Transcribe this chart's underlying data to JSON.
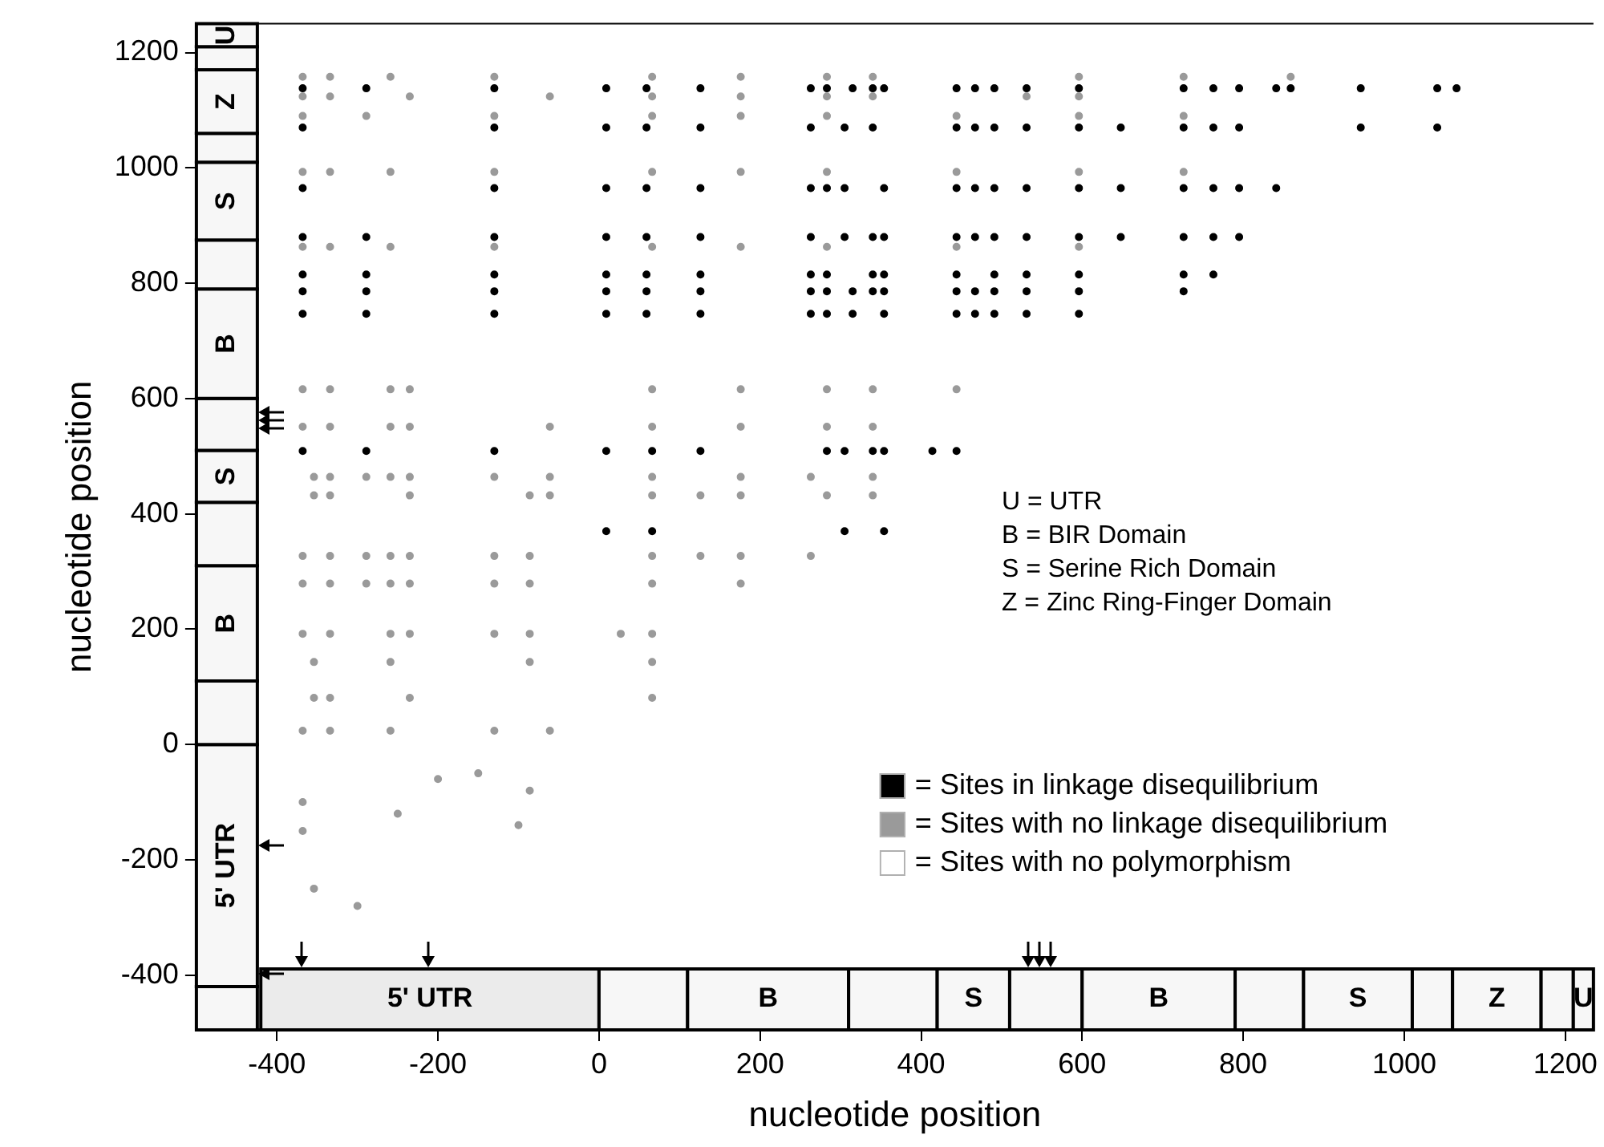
{
  "chart_data": {
    "type": "scatter",
    "xlabel": "nucleotide position",
    "ylabel": "nucleotide position",
    "xlim": [
      -500,
      1235
    ],
    "ylim": [
      -495,
      1250
    ],
    "xticks": [
      -400,
      -200,
      0,
      200,
      400,
      600,
      800,
      1000,
      1200
    ],
    "yticks": [
      -400,
      -200,
      0,
      200,
      400,
      600,
      800,
      1000,
      1200
    ],
    "grid": false,
    "legend": "bottom right",
    "marker": "circle",
    "series": [
      {
        "name": "= Sites in linkage disequilibrium",
        "color": "#000000",
        "x": [
          -368,
          -289,
          -130,
          9,
          59,
          126,
          263,
          283,
          315,
          340,
          354,
          444,
          467,
          491,
          531,
          596,
          726,
          763,
          795,
          841,
          859,
          946,
          1041,
          1065,
          -368,
          -130,
          9,
          59,
          126,
          263,
          305,
          340,
          444,
          467,
          491,
          531,
          596,
          648,
          726,
          763,
          795,
          946,
          1041,
          -368,
          -130,
          9,
          59,
          126,
          263,
          283,
          305,
          354,
          444,
          467,
          491,
          531,
          596,
          648,
          726,
          763,
          795,
          841,
          -368,
          -289,
          -130,
          9,
          59,
          126,
          263,
          305,
          340,
          354,
          444,
          467,
          491,
          531,
          596,
          648,
          726,
          763,
          795,
          -368,
          -289,
          -130,
          9,
          59,
          126,
          263,
          283,
          340,
          354,
          444,
          491,
          531,
          596,
          726,
          763,
          -368,
          -289,
          -130,
          9,
          59,
          126,
          263,
          283,
          315,
          340,
          354,
          444,
          467,
          491,
          531,
          596,
          726,
          -368,
          -289,
          -130,
          9,
          59,
          126,
          263,
          283,
          315,
          354,
          444,
          467,
          491,
          531,
          596,
          -368,
          -289,
          -130,
          9,
          66,
          126,
          283,
          305,
          340,
          354,
          414,
          444,
          9,
          66,
          305,
          354
        ],
        "values": [
          1138,
          1138,
          1138,
          1138,
          1138,
          1138,
          1138,
          1138,
          1138,
          1138,
          1138,
          1138,
          1138,
          1138,
          1138,
          1138,
          1138,
          1138,
          1138,
          1138,
          1138,
          1138,
          1138,
          1138,
          1070,
          1070,
          1070,
          1070,
          1070,
          1070,
          1070,
          1070,
          1070,
          1070,
          1070,
          1070,
          1070,
          1070,
          1070,
          1070,
          1070,
          1070,
          1070,
          965,
          965,
          965,
          965,
          965,
          965,
          965,
          965,
          965,
          965,
          965,
          965,
          965,
          965,
          965,
          965,
          965,
          965,
          965,
          880,
          880,
          880,
          880,
          880,
          880,
          880,
          880,
          880,
          880,
          880,
          880,
          880,
          880,
          880,
          880,
          880,
          880,
          880,
          815,
          815,
          815,
          815,
          815,
          815,
          815,
          815,
          815,
          815,
          815,
          815,
          815,
          815,
          815,
          815,
          786,
          786,
          786,
          786,
          786,
          786,
          786,
          786,
          786,
          786,
          786,
          786,
          786,
          786,
          786,
          786,
          786,
          747,
          747,
          747,
          747,
          747,
          747,
          747,
          747,
          747,
          747,
          747,
          747,
          747,
          747,
          747,
          509,
          509,
          509,
          509,
          509,
          509,
          509,
          509,
          509,
          509,
          509,
          509,
          370,
          370,
          370,
          370
        ]
      },
      {
        "name": "= Sites with no linkage disequilibrium",
        "color": "#9a9a9a",
        "x": [
          -368,
          -334,
          -259,
          -130,
          66,
          176,
          283,
          340,
          596,
          726,
          859,
          -368,
          -334,
          -235,
          -61,
          66,
          176,
          283,
          340,
          531,
          596,
          -368,
          -289,
          -130,
          66,
          176,
          283,
          444,
          596,
          726,
          -368,
          -334,
          -259,
          -130,
          66,
          176,
          283,
          444,
          596,
          726,
          -368,
          -334,
          -259,
          -130,
          66,
          176,
          283,
          444,
          596,
          -368,
          -334,
          -259,
          -235,
          66,
          176,
          283,
          340,
          444,
          -368,
          -334,
          -259,
          -235,
          -61,
          66,
          176,
          283,
          340,
          -354,
          -334,
          -289,
          -259,
          -235,
          -130,
          -61,
          66,
          176,
          263,
          340,
          -354,
          -334,
          -235,
          -86,
          -61,
          66,
          126,
          176,
          283,
          340,
          -368,
          -334,
          -289,
          -259,
          -235,
          -130,
          -86,
          66,
          126,
          176,
          263,
          -368,
          -334,
          -289,
          -259,
          -235,
          -130,
          -86,
          66,
          176,
          -368,
          -334,
          -259,
          -235,
          -130,
          -86,
          27,
          66,
          -354,
          -259,
          -86,
          66,
          -354,
          -334,
          -235,
          66,
          -368,
          -334,
          -259,
          -130,
          -61,
          -368,
          -368,
          -354,
          -300,
          -250,
          -200,
          -150,
          -100,
          -86
        ],
        "values": [
          1158,
          1158,
          1158,
          1158,
          1158,
          1158,
          1158,
          1158,
          1158,
          1158,
          1158,
          1124,
          1124,
          1124,
          1124,
          1124,
          1124,
          1124,
          1124,
          1124,
          1124,
          1090,
          1090,
          1090,
          1090,
          1090,
          1090,
          1090,
          1090,
          1090,
          993,
          993,
          993,
          993,
          993,
          993,
          993,
          993,
          993,
          993,
          863,
          863,
          863,
          863,
          863,
          863,
          863,
          863,
          863,
          616,
          616,
          616,
          616,
          616,
          616,
          616,
          616,
          616,
          551,
          551,
          551,
          551,
          551,
          551,
          551,
          551,
          551,
          464,
          464,
          464,
          464,
          464,
          464,
          464,
          464,
          464,
          464,
          464,
          432,
          432,
          432,
          432,
          432,
          432,
          432,
          432,
          432,
          432,
          327,
          327,
          327,
          327,
          327,
          327,
          327,
          327,
          327,
          327,
          327,
          279,
          279,
          279,
          279,
          279,
          279,
          279,
          279,
          279,
          192,
          192,
          192,
          192,
          192,
          192,
          192,
          192,
          143,
          143,
          143,
          143,
          81,
          81,
          81,
          81,
          24,
          24,
          24,
          24,
          24,
          -100,
          -150,
          -250,
          -280,
          -120,
          -60,
          -50,
          -140,
          -80
        ]
      },
      {
        "name": "= Sites with no polymorphism",
        "color": "#ffffff"
      }
    ],
    "bands": [
      {
        "axis": "x",
        "from": -420,
        "to": 0,
        "label": "5' UTR",
        "color": "#ebebeb"
      },
      {
        "axis": "x",
        "from": 0,
        "to": 110,
        "label": null
      },
      {
        "axis": "x",
        "from": 110,
        "to": 310,
        "label": "B"
      },
      {
        "axis": "x",
        "from": 310,
        "to": 420,
        "label": null
      },
      {
        "axis": "x",
        "from": 420,
        "to": 510,
        "label": "S"
      },
      {
        "axis": "x",
        "from": 510,
        "to": 600,
        "label": null
      },
      {
        "axis": "x",
        "from": 600,
        "to": 790,
        "label": "B"
      },
      {
        "axis": "x",
        "from": 790,
        "to": 875,
        "label": null
      },
      {
        "axis": "x",
        "from": 875,
        "to": 1010,
        "label": "S"
      },
      {
        "axis": "x",
        "from": 1010,
        "to": 1060,
        "label": null
      },
      {
        "axis": "x",
        "from": 1060,
        "to": 1170,
        "label": "Z"
      },
      {
        "axis": "x",
        "from": 1170,
        "to": 1210,
        "label": null
      },
      {
        "axis": "x",
        "from": 1210,
        "to": 1235,
        "label": "U"
      },
      {
        "axis": "y",
        "from": -495,
        "to": -420,
        "label": null
      },
      {
        "axis": "y",
        "from": -420,
        "to": 0,
        "label": "5' UTR"
      },
      {
        "axis": "y",
        "from": 0,
        "to": 110,
        "label": null
      },
      {
        "axis": "y",
        "from": 110,
        "to": 310,
        "label": "B"
      },
      {
        "axis": "y",
        "from": 310,
        "to": 420,
        "label": null
      },
      {
        "axis": "y",
        "from": 420,
        "to": 510,
        "label": "S"
      },
      {
        "axis": "y",
        "from": 510,
        "to": 600,
        "label": null
      },
      {
        "axis": "y",
        "from": 600,
        "to": 790,
        "label": "B"
      },
      {
        "axis": "y",
        "from": 790,
        "to": 875,
        "label": null
      },
      {
        "axis": "y",
        "from": 875,
        "to": 1010,
        "label": "S"
      },
      {
        "axis": "y",
        "from": 1010,
        "to": 1060,
        "label": null
      },
      {
        "axis": "y",
        "from": 1060,
        "to": 1170,
        "label": "Z"
      },
      {
        "axis": "y",
        "from": 1170,
        "to": 1210,
        "label": null
      },
      {
        "axis": "y",
        "from": 1210,
        "to": 1250,
        "label": "U"
      }
    ],
    "annotations": [
      "U = UTR",
      "B = BIR Domain",
      "S = Serine Rich Domain",
      "Z = Zinc Ring-Finger Domain"
    ]
  }
}
